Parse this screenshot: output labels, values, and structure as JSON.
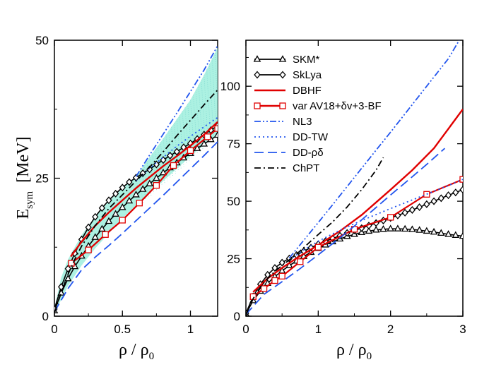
{
  "chart_data": [
    {
      "type": "line",
      "panel": "left",
      "xlabel": "ρ / ρ0",
      "ylabel": "Esym [MeV]",
      "xlim": [
        0,
        1.2
      ],
      "ylim": [
        0,
        50
      ],
      "xticks": [
        {
          "v": 0,
          "label": "0"
        },
        {
          "v": 0.5,
          "label": "0.5"
        },
        {
          "v": 1,
          "label": "1"
        }
      ],
      "yticks": [
        {
          "v": 0,
          "label": "0"
        },
        {
          "v": 25,
          "label": "25"
        },
        {
          "v": 50,
          "label": "50"
        }
      ],
      "band": {
        "x": [
          0,
          0.05,
          0.1,
          0.2,
          0.3,
          0.4,
          0.5,
          0.6,
          0.7,
          0.8,
          0.9,
          1.0,
          1.1,
          1.2
        ],
        "upper": [
          1.5,
          7.0,
          10.3,
          14.7,
          18.1,
          20.8,
          23.2,
          25.3,
          28.8,
          32.2,
          35.7,
          39.2,
          43.7,
          48.7
        ],
        "lower": [
          0.5,
          3.0,
          5.5,
          9.2,
          12.3,
          15.0,
          17.7,
          20.1,
          22.3,
          24.5,
          26.7,
          29.0,
          31.0,
          33.0
        ]
      },
      "series": [
        {
          "name": "SKM*",
          "marker": "triangle",
          "x": [
            0,
            0.05,
            0.1,
            0.15,
            0.2,
            0.25,
            0.3,
            0.35,
            0.4,
            0.45,
            0.5,
            0.55,
            0.6,
            0.65,
            0.7,
            0.75,
            0.8,
            0.85,
            0.9,
            0.95,
            1.0,
            1.05,
            1.1,
            1.15,
            1.2
          ],
          "y": [
            1.0,
            4.2,
            6.8,
            9.0,
            10.9,
            12.7,
            14.3,
            15.8,
            17.2,
            18.5,
            19.7,
            20.9,
            22.0,
            23.0,
            24.0,
            25.0,
            26.0,
            26.9,
            27.8,
            28.7,
            29.5,
            30.4,
            31.2,
            32.0,
            32.8
          ]
        },
        {
          "name": "SkLya",
          "marker": "diamond",
          "x": [
            0,
            0.05,
            0.1,
            0.15,
            0.2,
            0.25,
            0.3,
            0.35,
            0.4,
            0.45,
            0.5,
            0.55,
            0.6,
            0.65,
            0.7,
            0.75,
            0.8,
            0.85,
            0.9,
            0.95,
            1.0,
            1.05,
            1.1,
            1.15,
            1.2
          ],
          "y": [
            1.3,
            5.3,
            8.6,
            11.4,
            13.9,
            16.1,
            18.0,
            19.6,
            21.0,
            22.2,
            23.3,
            24.3,
            25.1,
            25.9,
            26.6,
            27.5,
            28.3,
            29.1,
            29.8,
            30.6,
            31.3,
            32.1,
            32.9,
            33.7,
            34.5
          ]
        },
        {
          "name": "DBHF",
          "style": "solid",
          "color": "#e00000",
          "x": [
            0.12,
            0.2,
            0.3,
            0.4,
            0.5,
            0.6,
            0.7,
            0.8,
            0.9,
            1.0,
            1.1,
            1.2
          ],
          "y": [
            10.8,
            13.5,
            16.4,
            18.8,
            21.0,
            23.2,
            25.2,
            27.2,
            29.0,
            30.9,
            32.9,
            35.2
          ]
        },
        {
          "name": "var AV18+δv+3-BF",
          "marker": "square",
          "color": "#e00000",
          "x": [
            0.125,
            0.25,
            0.375,
            0.5,
            0.625,
            0.75,
            0.875,
            1.0,
            1.125,
            1.2
          ],
          "y": [
            9.6,
            12.0,
            14.8,
            17.4,
            20.5,
            23.7,
            27.3,
            30.0,
            32.5,
            34.0
          ]
        },
        {
          "name": "NL3",
          "style": "dashdotdot",
          "color": "#2255ee",
          "x": [
            0.6,
            0.7,
            0.8,
            0.9,
            1.0,
            1.1,
            1.2
          ],
          "y": [
            25.3,
            29.2,
            33.0,
            36.8,
            40.7,
            44.6,
            49.0
          ]
        },
        {
          "name": "DD-TW",
          "style": "dotted",
          "color": "#2255ee",
          "x": [
            0.6,
            0.7,
            0.8,
            0.9,
            1.0,
            1.1,
            1.2
          ],
          "y": [
            24.5,
            26.8,
            28.8,
            30.8,
            32.6,
            34.3,
            36.0
          ]
        },
        {
          "name": "DD-ρδ",
          "style": "dashed",
          "color": "#2255ee",
          "x": [
            0,
            0.1,
            0.2,
            0.3,
            0.4,
            0.5,
            0.6,
            0.7,
            0.8,
            0.9,
            1.0,
            1.1,
            1.2
          ],
          "y": [
            0.8,
            5.0,
            8.4,
            10.7,
            12.8,
            15.0,
            17.3,
            19.6,
            21.9,
            24.3,
            26.7,
            29.1,
            31.6
          ]
        },
        {
          "name": "ChPT",
          "style": "dashdot",
          "color": "#000000",
          "x": [
            0,
            0.05,
            0.1,
            0.15,
            0.2,
            0.3,
            0.4,
            0.5,
            0.6,
            0.7,
            0.8,
            0.9,
            1.0,
            1.1,
            1.2
          ],
          "y": [
            0.6,
            4.3,
            7.6,
            10.3,
            12.7,
            16.4,
            19.5,
            22.0,
            24.5,
            27.0,
            29.8,
            32.7,
            35.5,
            38.3,
            41.0
          ]
        }
      ]
    },
    {
      "type": "line",
      "panel": "right",
      "xlabel": "ρ / ρ0",
      "ylabel": "",
      "xlim": [
        0,
        3
      ],
      "ylim": [
        0,
        120
      ],
      "xticks": [
        {
          "v": 0,
          "label": "0"
        },
        {
          "v": 1,
          "label": "1"
        },
        {
          "v": 2,
          "label": "2"
        },
        {
          "v": 3,
          "label": "3"
        }
      ],
      "yticks": [
        {
          "v": 0,
          "label": "0"
        },
        {
          "v": 25,
          "label": "25"
        },
        {
          "v": 50,
          "label": "50"
        },
        {
          "v": 75,
          "label": "75"
        },
        {
          "v": 100,
          "label": "100"
        }
      ],
      "legend_position": "top-left",
      "series": [
        {
          "name": "SKM*",
          "marker": "triangle",
          "color": "#000000",
          "x": [
            0,
            0.1,
            0.2,
            0.3,
            0.4,
            0.5,
            0.6,
            0.7,
            0.8,
            0.9,
            1.0,
            1.1,
            1.2,
            1.3,
            1.4,
            1.5,
            1.6,
            1.7,
            1.8,
            1.9,
            2.0,
            2.1,
            2.2,
            2.3,
            2.4,
            2.5,
            2.6,
            2.7,
            2.8,
            2.9,
            3.0
          ],
          "y": [
            1.0,
            6.8,
            10.9,
            14.3,
            17.2,
            19.7,
            22.0,
            24.0,
            26.0,
            27.8,
            29.5,
            31.0,
            32.4,
            33.6,
            34.7,
            35.6,
            36.4,
            37.0,
            37.5,
            37.8,
            38.0,
            38.0,
            37.9,
            37.7,
            37.4,
            37.0,
            36.6,
            36.1,
            35.6,
            35.2,
            34.8
          ]
        },
        {
          "name": "SkLya",
          "marker": "diamond",
          "color": "#000000",
          "x": [
            0,
            0.1,
            0.2,
            0.3,
            0.4,
            0.5,
            0.6,
            0.7,
            0.8,
            0.9,
            1.0,
            1.1,
            1.2,
            1.3,
            1.4,
            1.5,
            1.6,
            1.7,
            1.8,
            1.9,
            2.0,
            2.1,
            2.2,
            2.3,
            2.4,
            2.5,
            2.6,
            2.7,
            2.8,
            2.9,
            3.0
          ],
          "y": [
            1.3,
            8.6,
            13.9,
            18.0,
            21.0,
            23.3,
            25.1,
            26.6,
            28.3,
            29.8,
            31.3,
            32.6,
            33.8,
            35.0,
            36.2,
            37.3,
            38.3,
            39.4,
            40.5,
            41.6,
            42.7,
            43.8,
            45.0,
            46.2,
            47.4,
            48.7,
            50.0,
            51.3,
            52.6,
            53.8,
            55.0
          ]
        },
        {
          "name": "DBHF",
          "style": "solid",
          "color": "#e00000",
          "x": [
            0.1,
            0.3,
            0.5,
            0.7,
            1.0,
            1.3,
            1.6,
            2.0,
            2.3,
            2.6,
            3.0
          ],
          "y": [
            10.5,
            16.4,
            21.0,
            25.2,
            30.9,
            37.0,
            44.0,
            55.0,
            63.5,
            73.0,
            90.0
          ]
        },
        {
          "name": "var AV18+δv+3-BF",
          "marker": "square",
          "color": "#e00000",
          "x": [
            0.1,
            0.25,
            0.4,
            0.5,
            0.75,
            1.0,
            1.5,
            2.0,
            2.5,
            3.0
          ],
          "y": [
            8.5,
            12.0,
            15.5,
            17.4,
            23.7,
            30.0,
            37.8,
            43.0,
            53.0,
            59.5
          ]
        },
        {
          "name": "NL3",
          "style": "dashdotdot",
          "color": "#2255ee",
          "x": [
            0.6,
            0.8,
            1.0,
            1.2,
            1.4,
            1.6,
            1.8,
            2.0,
            2.2,
            2.4,
            2.6,
            2.8,
            2.95
          ],
          "y": [
            25.3,
            33.0,
            40.7,
            48.5,
            56.4,
            64.3,
            72.2,
            80.0,
            88.0,
            96.0,
            104.0,
            112.0,
            120.0
          ]
        },
        {
          "name": "DD-TW",
          "style": "dotted",
          "color": "#2255ee",
          "x": [
            0.6,
            0.8,
            1.0,
            1.2,
            1.4,
            1.6,
            1.8,
            2.0,
            2.2,
            2.4,
            2.6,
            2.8,
            3.0
          ],
          "y": [
            24.5,
            28.8,
            32.6,
            35.8,
            38.8,
            41.6,
            44.2,
            46.8,
            49.3,
            51.8,
            54.3,
            56.8,
            59.5
          ]
        },
        {
          "name": "DD-ρδ",
          "style": "dashed",
          "color": "#2255ee",
          "x": [
            0,
            0.25,
            0.5,
            0.75,
            1.0,
            1.25,
            1.5,
            1.75,
            2.0,
            2.25,
            2.5,
            2.75
          ],
          "y": [
            0.8,
            9.5,
            15.0,
            20.7,
            26.7,
            32.8,
            39.2,
            45.9,
            52.7,
            59.3,
            66.0,
            73.0
          ]
        },
        {
          "name": "ChPT",
          "style": "dashdot",
          "color": "#000000",
          "x": [
            0,
            0.1,
            0.2,
            0.3,
            0.4,
            0.5,
            0.6,
            0.7,
            0.8,
            0.9,
            1.0,
            1.2,
            1.4,
            1.6,
            1.8,
            1.9
          ],
          "y": [
            0.6,
            7.6,
            12.7,
            16.4,
            19.5,
            22.0,
            24.5,
            27.0,
            29.8,
            32.7,
            35.5,
            41.0,
            47.5,
            55.0,
            63.5,
            69.0
          ]
        }
      ]
    }
  ]
}
